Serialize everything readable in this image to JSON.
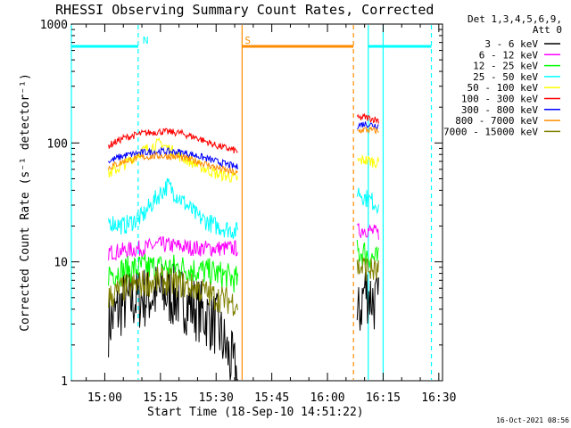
{
  "chart_data": {
    "type": "line",
    "title": "RHESSI Observing Summary Count Rates, Corrected",
    "xlabel": "Start Time (18-Sep-10 14:51:22)",
    "ylabel": "Corrected Count Rate (s⁻¹ detector⁻¹)",
    "y_scale": "log",
    "xlim": [
      "14:51",
      "16:31"
    ],
    "ylim": [
      1,
      1000
    ],
    "x_ticks": [
      "15:00",
      "15:15",
      "15:30",
      "15:45",
      "16:00",
      "16:15",
      "16:30"
    ],
    "y_ticks": [
      "1",
      "10",
      "100",
      "1000"
    ],
    "legend": {
      "placement": "right",
      "header": [
        "Det 1,3,4,5,6,9,",
        "Att 0"
      ],
      "entries": [
        "3 - 6 keV",
        "6 - 12 keV",
        "12 - 25 keV",
        "25 - 50 keV",
        "50 - 100 keV",
        "100 - 300 keV",
        "300 - 800 keV",
        "800 - 7000 keV",
        "7000 - 15000 keV"
      ]
    },
    "series": [
      {
        "name": "3 - 6 keV",
        "color": "#000000",
        "noise": 0.28,
        "x": [
          "15:01",
          "15:05",
          "15:10",
          "15:15",
          "15:20",
          "15:25",
          "15:30",
          "15:36",
          "16:08",
          "16:10",
          "16:12",
          "16:14"
        ],
        "values": [
          3,
          4.5,
          5,
          5.5,
          5,
          4,
          3,
          1,
          3,
          6,
          5,
          4
        ]
      },
      {
        "name": "6 - 12 keV",
        "color": "#ff00ff",
        "noise": 0.07,
        "x": [
          "15:01",
          "15:10",
          "15:15",
          "15:20",
          "15:25",
          "15:30",
          "15:36",
          "16:08",
          "16:10",
          "16:14"
        ],
        "values": [
          12,
          13,
          14,
          13.5,
          13,
          13,
          13,
          18,
          19,
          17
        ]
      },
      {
        "name": "12 - 25 keV",
        "color": "#00ff00",
        "noise": 0.12,
        "x": [
          "15:01",
          "15:10",
          "15:20",
          "15:30",
          "15:36",
          "16:08",
          "16:10",
          "16:14"
        ],
        "values": [
          8,
          9,
          9,
          8,
          7,
          12,
          12,
          10
        ]
      },
      {
        "name": "25 - 50 keV",
        "color": "#00ffff",
        "noise": 0.08,
        "x": [
          "15:01",
          "15:05",
          "15:10",
          "15:15",
          "15:17",
          "15:20",
          "15:25",
          "15:30",
          "15:36",
          "16:08",
          "16:10",
          "16:14"
        ],
        "values": [
          22,
          20,
          24,
          38,
          44,
          35,
          24,
          20,
          18,
          40,
          35,
          30
        ]
      },
      {
        "name": "50 - 100 keV",
        "color": "#ffff00",
        "noise": 0.05,
        "x": [
          "15:01",
          "15:05",
          "15:10",
          "15:15",
          "15:20",
          "15:25",
          "15:30",
          "15:36",
          "16:08",
          "16:10",
          "16:14"
        ],
        "values": [
          55,
          65,
          85,
          100,
          78,
          65,
          55,
          50,
          70,
          72,
          68
        ]
      },
      {
        "name": "100 - 300 keV",
        "color": "#ff0000",
        "noise": 0.03,
        "x": [
          "15:01",
          "15:05",
          "15:10",
          "15:15",
          "15:20",
          "15:25",
          "15:30",
          "15:36",
          "16:08",
          "16:10",
          "16:14"
        ],
        "values": [
          95,
          110,
          120,
          125,
          122,
          110,
          95,
          85,
          160,
          165,
          155
        ]
      },
      {
        "name": "300 - 800 keV",
        "color": "#0000ff",
        "noise": 0.03,
        "x": [
          "15:01",
          "15:05",
          "15:10",
          "15:15",
          "15:20",
          "15:25",
          "15:30",
          "15:36",
          "16:08",
          "16:10",
          "16:14"
        ],
        "values": [
          70,
          78,
          83,
          85,
          84,
          78,
          70,
          62,
          140,
          145,
          140
        ]
      },
      {
        "name": "800 - 7000 keV",
        "color": "#ff8c00",
        "noise": 0.03,
        "x": [
          "15:01",
          "15:05",
          "15:10",
          "15:15",
          "15:20",
          "15:25",
          "15:30",
          "15:36",
          "16:08",
          "16:10",
          "16:14"
        ],
        "values": [
          62,
          70,
          76,
          78,
          76,
          70,
          62,
          55,
          125,
          130,
          125
        ]
      },
      {
        "name": "7000 - 15000 keV",
        "color": "#808000",
        "noise": 0.12,
        "x": [
          "15:01",
          "15:05",
          "15:10",
          "15:15",
          "15:20",
          "15:25",
          "15:30",
          "15:36",
          "16:08",
          "16:10",
          "16:14"
        ],
        "values": [
          5,
          6,
          6.5,
          7,
          6.5,
          6,
          5,
          4.5,
          9,
          9,
          8
        ]
      }
    ],
    "flags": [
      {
        "label": "",
        "color": "#00ffff",
        "level": 650,
        "from": "14:51",
        "to": "15:09",
        "dashed_end": true
      },
      {
        "label": "N",
        "color": "#00ffff",
        "level": 650,
        "from": "15:09",
        "to": "15:09",
        "dashed_end": false
      },
      {
        "label": "S",
        "color": "#ff8c00",
        "level": 650,
        "from": "15:37",
        "to": "16:07",
        "dashed_end": true
      },
      {
        "label": "",
        "color": "#00ffff",
        "level": 650,
        "from": "16:11",
        "to": "16:28",
        "dashed_end": true
      }
    ],
    "verticals": [
      {
        "x": "14:51",
        "color": "#00ffff",
        "dashed": false
      },
      {
        "x": "15:09",
        "color": "#00ffff",
        "dashed": true
      },
      {
        "x": "15:37",
        "color": "#ff8c00",
        "dashed": false
      },
      {
        "x": "16:07",
        "color": "#ff8c00",
        "dashed": true
      },
      {
        "x": "16:11",
        "color": "#00ffff",
        "dashed": false
      },
      {
        "x": "16:15",
        "color": "#00ffff",
        "dashed": false
      },
      {
        "x": "16:28",
        "color": "#00ffff",
        "dashed": true
      }
    ],
    "gap": [
      "15:36",
      "16:08"
    ],
    "timestamp": "16-Oct-2021 08:56"
  }
}
